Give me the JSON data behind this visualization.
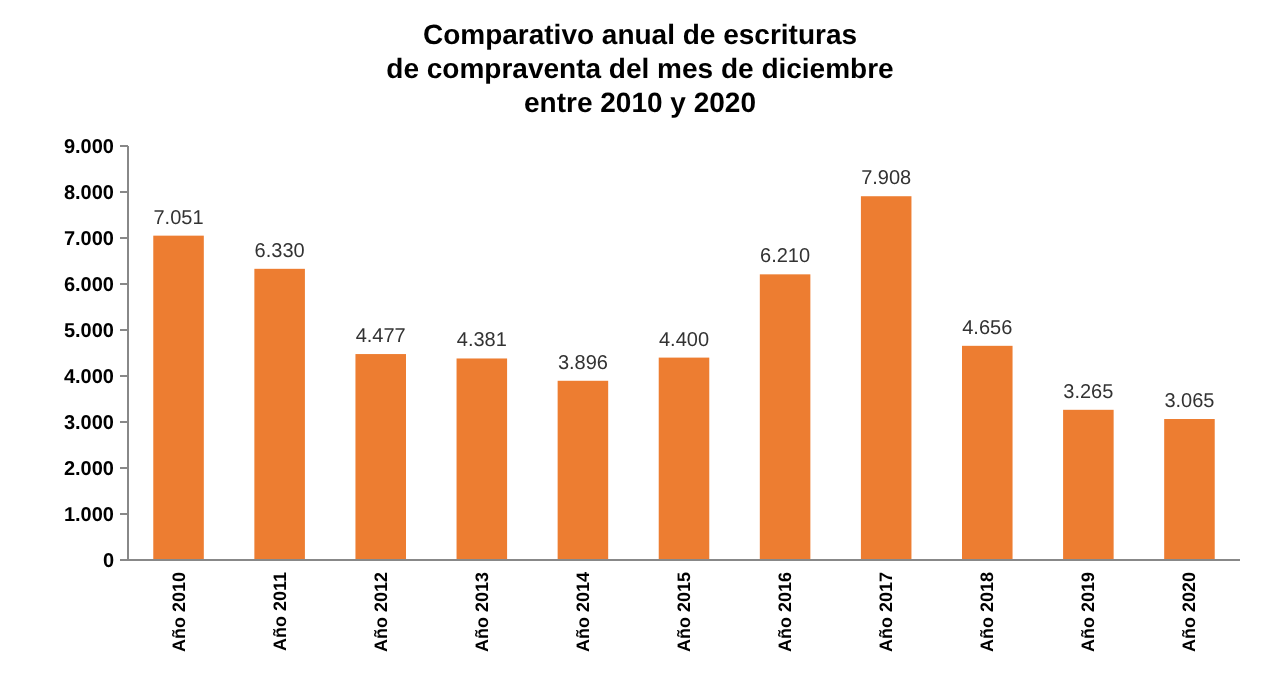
{
  "chart_data": {
    "type": "bar",
    "title": "Comparativo anual de escrituras\nde compraventa del mes de diciembre\nentre 2010 y 2020",
    "categories": [
      "Año 2010",
      "Año 2011",
      "Año 2012",
      "Año 2013",
      "Año 2014",
      "Año 2015",
      "Año 2016",
      "Año 2017",
      "Año 2018",
      "Año 2019",
      "Año 2020"
    ],
    "values": [
      7051,
      6330,
      4477,
      4381,
      3896,
      4400,
      6210,
      7908,
      4656,
      3265,
      3065
    ],
    "value_labels": [
      "7.051",
      "6.330",
      "4.477",
      "4.381",
      "3.896",
      "4.400",
      "6.210",
      "7.908",
      "4.656",
      "3.265",
      "3.065"
    ],
    "color": "#ed7d31",
    "ylim": [
      0,
      9000
    ],
    "yticks": [
      {
        "value": 0,
        "label": "0"
      },
      {
        "value": 1000,
        "label": "1.000"
      },
      {
        "value": 2000,
        "label": "2.000"
      },
      {
        "value": 3000,
        "label": "3.000"
      },
      {
        "value": 4000,
        "label": "4.000"
      },
      {
        "value": 5000,
        "label": "5.000"
      },
      {
        "value": 6000,
        "label": "6.000"
      },
      {
        "value": 7000,
        "label": "7.000"
      },
      {
        "value": 8000,
        "label": "8.000"
      },
      {
        "value": 9000,
        "label": "9.000"
      }
    ]
  }
}
